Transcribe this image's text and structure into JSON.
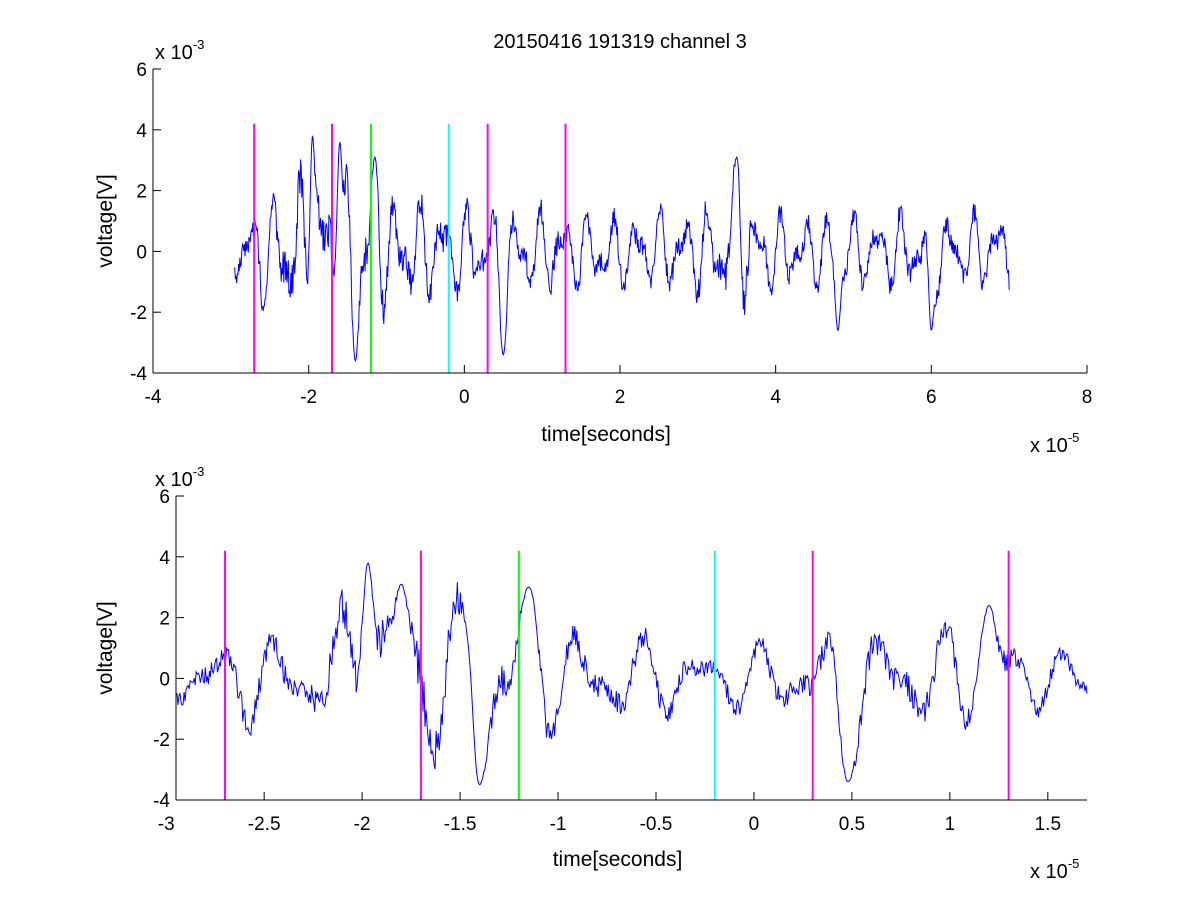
{
  "title": "20150416 191319 channel 3",
  "colors": {
    "signal": "#0000ff",
    "magenta": "#ff00ff",
    "green": "#00ff00",
    "cyan": "#00ffff",
    "axis": "#000000"
  },
  "chart_data": [
    {
      "type": "line",
      "xlabel": "time[seconds]",
      "ylabel": "voltage[V]",
      "x_exponent_label": "x 10",
      "x_exponent_power": "-5",
      "y_exponent_label": "x 10",
      "y_exponent_power": "-3",
      "xlim": [
        -4,
        8
      ],
      "ylim": [
        -4,
        6
      ],
      "x_ticks": [
        -4,
        -2,
        0,
        2,
        4,
        6,
        8
      ],
      "x_tick_labels": [
        "-4",
        "-2",
        "0",
        "2",
        "4",
        "6",
        "8"
      ],
      "y_ticks": [
        -4,
        -2,
        0,
        2,
        4,
        6
      ],
      "y_tick_labels": [
        "-4",
        "-2",
        "0",
        "2",
        "4",
        "6"
      ],
      "grid": false,
      "series": [
        {
          "color": "#0000ff",
          "x_start": -2.95,
          "x_end": 7.0,
          "envelope": [
            [
              -2.95,
              1.0
            ],
            [
              -2.0,
              2.8
            ],
            [
              -1.0,
              1.8
            ],
            [
              0.0,
              1.5
            ],
            [
              1.0,
              1.4
            ],
            [
              2.0,
              1.2
            ],
            [
              3.0,
              1.4
            ],
            [
              3.5,
              2.0
            ],
            [
              4.0,
              1.2
            ],
            [
              5.0,
              1.2
            ],
            [
              6.0,
              1.3
            ],
            [
              7.0,
              1.2
            ]
          ],
          "notable_points": [
            [
              -1.95,
              3.8
            ],
            [
              -1.6,
              3.6
            ],
            [
              -1.4,
              -3.6
            ],
            [
              -1.15,
              3.1
            ],
            [
              0.5,
              -3.4
            ],
            [
              3.5,
              3.1
            ],
            [
              4.8,
              -2.6
            ],
            [
              6.0,
              -2.6
            ]
          ]
        }
      ],
      "markers": [
        {
          "x": -2.7,
          "y_top": 4.2,
          "y_bottom": -4,
          "color": "#ff00ff"
        },
        {
          "x": -1.7,
          "y_top": 4.2,
          "y_bottom": -4,
          "color": "#ff00ff"
        },
        {
          "x": -1.2,
          "y_top": 4.2,
          "y_bottom": -4,
          "color": "#00ff00"
        },
        {
          "x": -0.2,
          "y_top": 4.2,
          "y_bottom": -4,
          "color": "#00ffff"
        },
        {
          "x": 0.3,
          "y_top": 4.2,
          "y_bottom": -4,
          "color": "#ff00ff"
        },
        {
          "x": 1.3,
          "y_top": 4.2,
          "y_bottom": -4,
          "color": "#ff00ff"
        }
      ]
    },
    {
      "type": "line",
      "xlabel": "time[seconds]",
      "ylabel": "voltage[V]",
      "x_exponent_label": "x 10",
      "x_exponent_power": "-5",
      "y_exponent_label": "x 10",
      "y_exponent_power": "-3",
      "xlim": [
        -2.95,
        1.7
      ],
      "ylim": [
        -4,
        6
      ],
      "x_ticks": [
        -3,
        -2.5,
        -2,
        -1.5,
        -1,
        -0.5,
        0,
        0.5,
        1,
        1.5
      ],
      "x_tick_labels": [
        "-3",
        "-2.5",
        "-2",
        "-1.5",
        "-1",
        "-0.5",
        "0",
        "0.5",
        "1",
        "1.5"
      ],
      "y_ticks": [
        -4,
        -2,
        0,
        2,
        4,
        6
      ],
      "y_tick_labels": [
        "-4",
        "-2",
        "0",
        "2",
        "4",
        "6"
      ],
      "grid": false,
      "series": [
        {
          "color": "#0000ff",
          "x_start": -2.95,
          "x_end": 1.7,
          "envelope": [
            [
              -2.95,
              0.9
            ],
            [
              -2.6,
              1.5
            ],
            [
              -2.3,
              1.3
            ],
            [
              -2.0,
              3.0
            ],
            [
              -1.8,
              2.6
            ],
            [
              -1.5,
              2.6
            ],
            [
              -1.2,
              2.0
            ],
            [
              -0.9,
              1.6
            ],
            [
              -0.5,
              1.3
            ],
            [
              -0.2,
              1.0
            ],
            [
              0.2,
              1.2
            ],
            [
              0.5,
              1.8
            ],
            [
              0.9,
              1.6
            ],
            [
              1.2,
              1.7
            ],
            [
              1.5,
              0.9
            ],
            [
              1.7,
              0.8
            ]
          ],
          "notable_points": [
            [
              -1.97,
              3.8
            ],
            [
              -1.8,
              3.1
            ],
            [
              -1.45,
              2.7
            ],
            [
              -1.4,
              -3.5
            ],
            [
              -1.15,
              3.0
            ],
            [
              0.48,
              -3.4
            ],
            [
              1.2,
              2.4
            ]
          ]
        }
      ],
      "markers": [
        {
          "x": -2.7,
          "y_top": 4.2,
          "y_bottom": -4,
          "color": "#ff00ff"
        },
        {
          "x": -1.7,
          "y_top": 4.2,
          "y_bottom": -4,
          "color": "#ff00ff"
        },
        {
          "x": -1.2,
          "y_top": 4.2,
          "y_bottom": -4,
          "color": "#00ff00"
        },
        {
          "x": -0.2,
          "y_top": 4.2,
          "y_bottom": -4,
          "color": "#00ffff"
        },
        {
          "x": 0.3,
          "y_top": 4.2,
          "y_bottom": -4,
          "color": "#ff00ff"
        },
        {
          "x": 1.3,
          "y_top": 4.2,
          "y_bottom": -4,
          "color": "#ff00ff"
        }
      ]
    }
  ]
}
